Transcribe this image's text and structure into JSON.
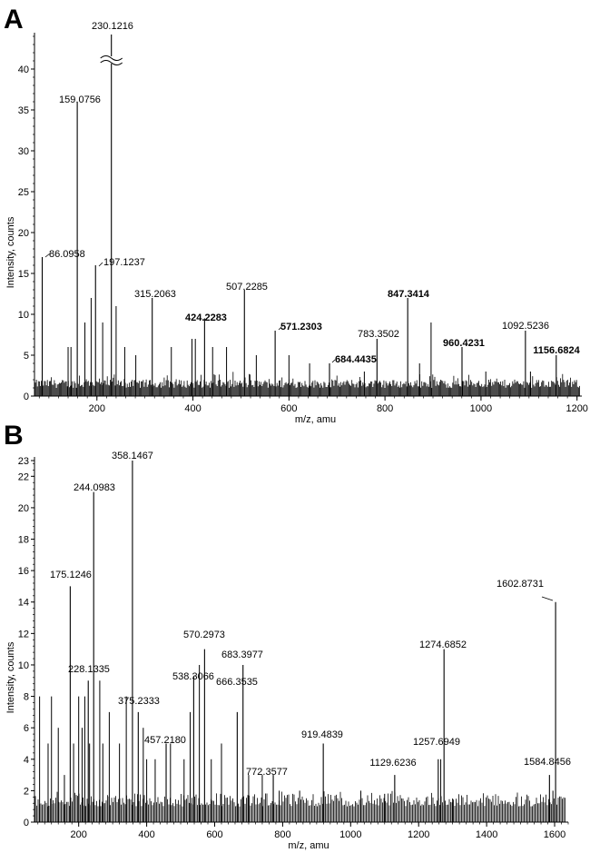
{
  "chart_data": [
    {
      "type": "line",
      "panel": "A",
      "xlabel": "m/z, amu",
      "ylabel": "Intensity, counts",
      "xlim": [
        70,
        1210
      ],
      "ylim": [
        0,
        44
      ],
      "x_ticks": [
        200,
        400,
        600,
        800,
        1000,
        1200
      ],
      "y_ticks": [
        0,
        5,
        10,
        15,
        20,
        25,
        30,
        35,
        40
      ],
      "axis_break": {
        "x": 230.1216,
        "y": 41
      },
      "grid": false,
      "peaks": [
        {
          "x": 86.0958,
          "y": 17,
          "label": "86.0958",
          "bold": false
        },
        {
          "x": 159.0756,
          "y": 36,
          "label": "159.0756",
          "bold": false
        },
        {
          "x": 197.1237,
          "y": 16,
          "label": "197.1237",
          "bold": false
        },
        {
          "x": 230.1216,
          "y": 44,
          "label": "230.1216",
          "bold": false
        },
        {
          "x": 315.2063,
          "y": 12,
          "label": "315.2063",
          "bold": false
        },
        {
          "x": 424.2283,
          "y": 9.5,
          "label": "424.2283",
          "bold": true
        },
        {
          "x": 507.2285,
          "y": 13,
          "label": "507.2285",
          "bold": false
        },
        {
          "x": 571.2303,
          "y": 8,
          "label": "571.2303",
          "bold": true
        },
        {
          "x": 684.4435,
          "y": 4,
          "label": "684.4435",
          "bold": true
        },
        {
          "x": 783.3502,
          "y": 7,
          "label": "783.3502",
          "bold": false
        },
        {
          "x": 847.3414,
          "y": 12,
          "label": "847.3414",
          "bold": true
        },
        {
          "x": 960.4231,
          "y": 6,
          "label": "960.4231",
          "bold": true
        },
        {
          "x": 1092.5236,
          "y": 8,
          "label": "1092.5236",
          "bold": false
        },
        {
          "x": 1156.6824,
          "y": 5,
          "label": "1156.6824",
          "bold": true
        }
      ],
      "minor_peaks": [
        {
          "x": 140,
          "y": 6
        },
        {
          "x": 146,
          "y": 6
        },
        {
          "x": 175,
          "y": 9
        },
        {
          "x": 188,
          "y": 12
        },
        {
          "x": 212,
          "y": 9
        },
        {
          "x": 240,
          "y": 11
        },
        {
          "x": 258,
          "y": 6
        },
        {
          "x": 281,
          "y": 5
        },
        {
          "x": 355,
          "y": 6
        },
        {
          "x": 398,
          "y": 7
        },
        {
          "x": 405,
          "y": 7
        },
        {
          "x": 441,
          "y": 6
        },
        {
          "x": 470,
          "y": 6
        },
        {
          "x": 532,
          "y": 5
        },
        {
          "x": 600,
          "y": 5
        },
        {
          "x": 643,
          "y": 4
        },
        {
          "x": 757,
          "y": 3
        },
        {
          "x": 872,
          "y": 4
        },
        {
          "x": 896,
          "y": 9
        },
        {
          "x": 1010,
          "y": 3
        },
        {
          "x": 1103,
          "y": 3
        }
      ]
    },
    {
      "type": "line",
      "panel": "B",
      "xlabel": "m/z, amu",
      "ylabel": "Intensity, counts",
      "xlim": [
        70,
        1640
      ],
      "ylim": [
        0,
        23
      ],
      "x_ticks": [
        200,
        400,
        600,
        800,
        1000,
        1200,
        1400,
        1600
      ],
      "y_ticks": [
        0,
        2,
        4,
        6,
        8,
        10,
        12,
        14,
        16,
        18,
        20,
        22,
        23
      ],
      "grid": false,
      "peaks": [
        {
          "x": 175.1246,
          "y": 15,
          "label": "175.1246",
          "bold": false
        },
        {
          "x": 228.1335,
          "y": 9,
          "label": "228.1335",
          "bold": false
        },
        {
          "x": 244.0983,
          "y": 21,
          "label": "244.0983",
          "bold": false
        },
        {
          "x": 358.1467,
          "y": 23,
          "label": "358.1467",
          "bold": false
        },
        {
          "x": 375.2333,
          "y": 7,
          "label": "375.2333",
          "bold": false
        },
        {
          "x": 457.218,
          "y": 5,
          "label": "457.2180",
          "bold": false
        },
        {
          "x": 538.3066,
          "y": 9.3,
          "label": "538.3066",
          "bold": false
        },
        {
          "x": 570.2973,
          "y": 11,
          "label": "570.2973",
          "bold": false
        },
        {
          "x": 666.3535,
          "y": 7,
          "label": "666.3535",
          "bold": false
        },
        {
          "x": 683.3977,
          "y": 10,
          "label": "683.3977",
          "bold": false
        },
        {
          "x": 772.3577,
          "y": 3,
          "label": "772.3577",
          "bold": false
        },
        {
          "x": 919.4839,
          "y": 5,
          "label": "919.4839",
          "bold": false
        },
        {
          "x": 1129.6236,
          "y": 3,
          "label": "1129.6236",
          "bold": false
        },
        {
          "x": 1257.6949,
          "y": 4,
          "label": "1257.6949",
          "bold": false
        },
        {
          "x": 1274.6852,
          "y": 11,
          "label": "1274.6852",
          "bold": false
        },
        {
          "x": 1584.8456,
          "y": 3,
          "label": "1584.8456",
          "bold": false
        },
        {
          "x": 1602.8731,
          "y": 14,
          "label": "1602.8731",
          "bold": false
        }
      ],
      "minor_peaks": [
        {
          "x": 85,
          "y": 8
        },
        {
          "x": 110,
          "y": 5
        },
        {
          "x": 120,
          "y": 8
        },
        {
          "x": 140,
          "y": 6
        },
        {
          "x": 158,
          "y": 3
        },
        {
          "x": 185,
          "y": 5
        },
        {
          "x": 200,
          "y": 8
        },
        {
          "x": 210,
          "y": 6
        },
        {
          "x": 218,
          "y": 8
        },
        {
          "x": 232,
          "y": 5
        },
        {
          "x": 262,
          "y": 9
        },
        {
          "x": 271,
          "y": 5
        },
        {
          "x": 290,
          "y": 7
        },
        {
          "x": 320,
          "y": 5
        },
        {
          "x": 340,
          "y": 8
        },
        {
          "x": 390,
          "y": 6
        },
        {
          "x": 400,
          "y": 4
        },
        {
          "x": 425,
          "y": 4
        },
        {
          "x": 470,
          "y": 5
        },
        {
          "x": 510,
          "y": 4
        },
        {
          "x": 528,
          "y": 7
        },
        {
          "x": 555,
          "y": 10
        },
        {
          "x": 590,
          "y": 4
        },
        {
          "x": 620,
          "y": 5
        },
        {
          "x": 700,
          "y": 3
        },
        {
          "x": 740,
          "y": 3
        },
        {
          "x": 790,
          "y": 2
        },
        {
          "x": 850,
          "y": 2
        },
        {
          "x": 1030,
          "y": 2
        },
        {
          "x": 1100,
          "y": 1.8
        },
        {
          "x": 1265,
          "y": 4
        },
        {
          "x": 1300,
          "y": 1.5
        },
        {
          "x": 1595,
          "y": 2
        }
      ]
    }
  ]
}
